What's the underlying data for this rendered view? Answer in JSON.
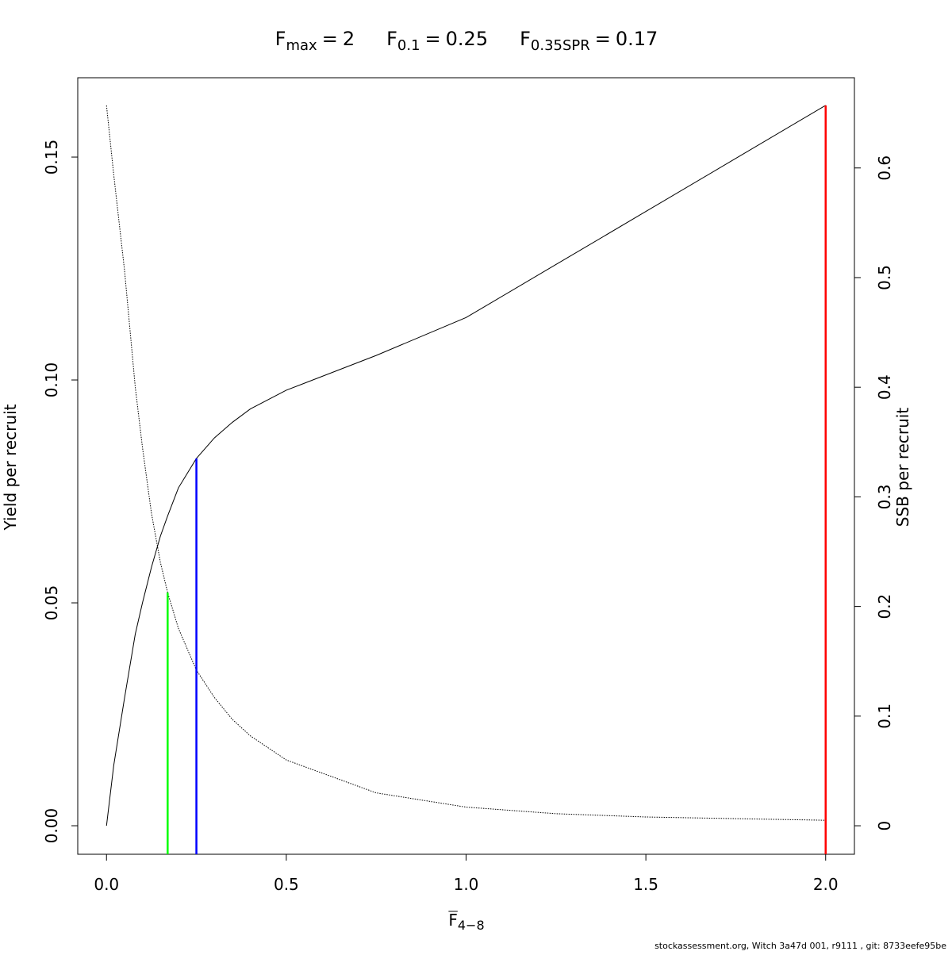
{
  "chart_data": {
    "type": "line",
    "title_items": [
      {
        "symbol": "F",
        "sub": "max",
        "relation": "=",
        "value": 2
      },
      {
        "symbol": "F",
        "sub": "0.1",
        "relation": "=",
        "value": 0.25
      },
      {
        "symbol": "F",
        "sub": "0.35SPR",
        "relation": "=",
        "value": 0.17
      }
    ],
    "x_label": {
      "symbol": "F",
      "sub": "4−8"
    },
    "y_label": "Yield per recruit",
    "y2_label": "SSB per recruit",
    "footer": "stockassessment.org, Witch  3a47d  001, r9111 , git: 8733eefe95be",
    "x": [
      0,
      0.02,
      0.05,
      0.08,
      0.1,
      0.125,
      0.15,
      0.17,
      0.2,
      0.25,
      0.3,
      0.35,
      0.4,
      0.5,
      0.75,
      1,
      1.25,
      1.5,
      1.75,
      2
    ],
    "series": [
      {
        "color": "#000000",
        "dash": "solid",
        "axis": "y",
        "values": [
          0,
          0.0135,
          0.0286,
          0.043,
          0.05,
          0.058,
          0.065,
          0.0695,
          0.0758,
          0.0824,
          0.087,
          0.0905,
          0.0935,
          0.0977,
          0.1055,
          0.114,
          0.1259,
          0.1378,
          0.1497,
          0.1616
        ]
      },
      {
        "color": "#000000",
        "dash": "dotted",
        "axis": "y2",
        "values": [
          0.657,
          0.594,
          0.507,
          0.4,
          0.345,
          0.285,
          0.24,
          0.2127,
          0.18,
          0.142,
          0.117,
          0.097,
          0.082,
          0.06,
          0.03,
          0.017,
          0.011,
          0.008,
          0.0065,
          0.005
        ]
      }
    ],
    "reference_lines": [
      {
        "color": "#ff0000",
        "axis": "y",
        "top": 0.1616
      },
      {
        "color": "#0000ff",
        "axis": "y",
        "top": 0.0824
      },
      {
        "color": "#00ff00",
        "axis": "y2",
        "top": 0.2127
      }
    ],
    "xlim": [
      -0.08,
      2.08
    ],
    "xticks": [
      {
        "value": 0,
        "label": "0.0"
      },
      {
        "value": 0.5,
        "label": "0.5"
      },
      {
        "value": 1,
        "label": "1.0"
      },
      {
        "value": 1.5,
        "label": "1.5"
      },
      {
        "value": 2,
        "label": "2.0"
      }
    ],
    "ylim": [
      -0.0064,
      0.1678
    ],
    "yticks": [
      {
        "value": 0,
        "label": "0.00"
      },
      {
        "value": 0.05,
        "label": "0.05"
      },
      {
        "value": 0.1,
        "label": "0.10"
      },
      {
        "value": 0.15,
        "label": "0.15"
      }
    ],
    "y2lim": [
      -0.026,
      0.6823
    ],
    "y2ticks": [
      0,
      0.1,
      0.2,
      0.3,
      0.4,
      0.5,
      0.6
    ]
  }
}
